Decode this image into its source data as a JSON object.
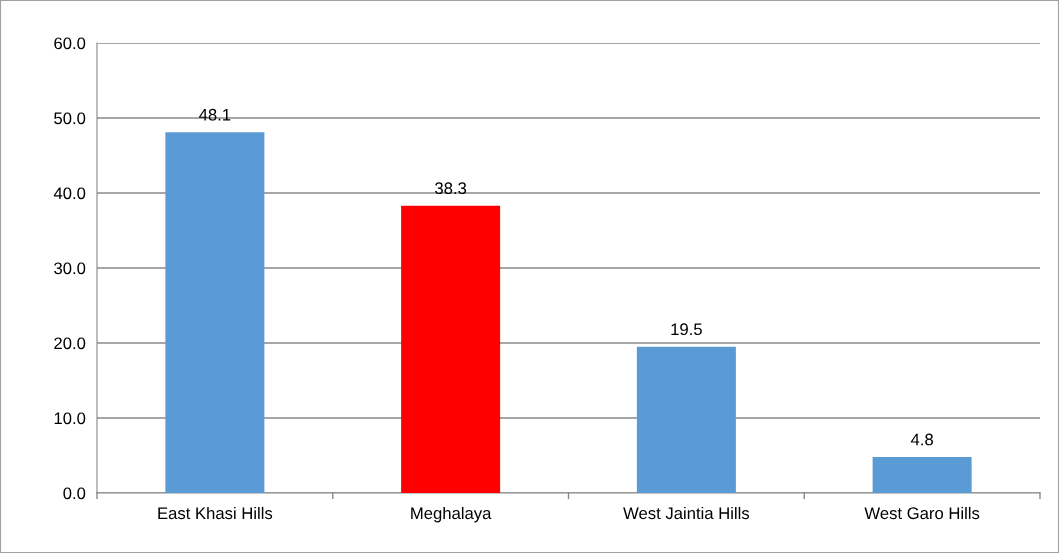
{
  "chart_data": {
    "type": "bar",
    "categories": [
      "East Khasi Hills",
      "Meghalaya",
      "West Jaintia Hills",
      "West Garo Hills"
    ],
    "values": [
      48.1,
      38.3,
      19.5,
      4.8
    ],
    "colors": [
      "#5b9bd5",
      "#ff0000",
      "#5b9bd5",
      "#5b9bd5"
    ],
    "ylim": [
      0,
      60
    ],
    "yticks": [
      {
        "value": 0,
        "label": "0.0"
      },
      {
        "value": 10,
        "label": "10.0"
      },
      {
        "value": 20,
        "label": "20.0"
      },
      {
        "value": 30,
        "label": "30.0"
      },
      {
        "value": 40,
        "label": "40.0"
      },
      {
        "value": 50,
        "label": "50.0"
      },
      {
        "value": 60,
        "label": "60.0"
      }
    ],
    "grid": "y",
    "data_labels": true
  }
}
